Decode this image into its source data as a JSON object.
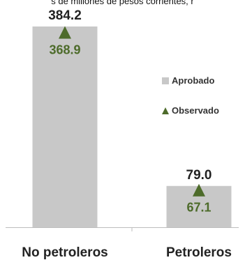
{
  "caption": "s de millones de pesos corrientes, r",
  "colors": {
    "approved": "#c8c8c8",
    "observed": "#4d6b2a",
    "axis": "#bdbdbd",
    "label": "#222222"
  },
  "legend": {
    "approved_label": "Aprobado",
    "observed_label": "Observado"
  },
  "chart_data": {
    "type": "bar",
    "categories": [
      "No petroleros",
      "Petroleros"
    ],
    "series": [
      {
        "name": "Aprobado",
        "values": [
          384.2,
          79.0
        ],
        "labels": [
          "384.2",
          "79.0"
        ]
      },
      {
        "name": "Observado",
        "values": [
          368.9,
          67.1
        ],
        "labels": [
          "368.9",
          "67.1"
        ]
      }
    ],
    "ylim": [
      0,
      384.2
    ],
    "legend_position": "right"
  }
}
